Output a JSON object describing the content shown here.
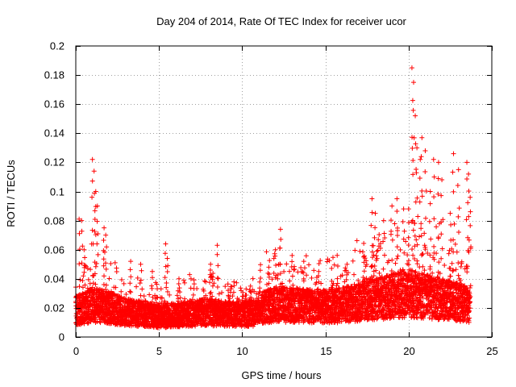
{
  "chart_data": {
    "type": "scatter",
    "title": "Day 204 of 2014, Rate Of TEC Index for receiver ucor",
    "xlabel": "GPS time / hours",
    "ylabel": "ROTI / TECUs",
    "xlim": [
      0,
      25
    ],
    "ylim": [
      0,
      0.2
    ],
    "xticks": [
      0,
      5,
      10,
      15,
      20,
      25
    ],
    "yticks": [
      0,
      0.02,
      0.04,
      0.06,
      0.08,
      0.1,
      0.12,
      0.14,
      0.16,
      0.18,
      0.2
    ],
    "grid": true,
    "marker": "+",
    "color": "#ff0000",
    "series": [
      {
        "name": "ROTI",
        "baseline_profile": [
          [
            0,
            0.018
          ],
          [
            1,
            0.022
          ],
          [
            2,
            0.02
          ],
          [
            3,
            0.017
          ],
          [
            4,
            0.016
          ],
          [
            5,
            0.014
          ],
          [
            6,
            0.015
          ],
          [
            7,
            0.016
          ],
          [
            8,
            0.017
          ],
          [
            9,
            0.016
          ],
          [
            10,
            0.016
          ],
          [
            10.8,
            0.016
          ],
          [
            11,
            0.02
          ],
          [
            12,
            0.022
          ],
          [
            13,
            0.022
          ],
          [
            14,
            0.021
          ],
          [
            15,
            0.021
          ],
          [
            16,
            0.022
          ],
          [
            17,
            0.024
          ],
          [
            18,
            0.026
          ],
          [
            19,
            0.028
          ],
          [
            20,
            0.03
          ],
          [
            21,
            0.028
          ],
          [
            22,
            0.026
          ],
          [
            23,
            0.024
          ],
          [
            23.7,
            0.022
          ]
        ],
        "peaks": [
          [
            0.2,
            0.081
          ],
          [
            0.35,
            0.08
          ],
          [
            0.5,
            0.06
          ],
          [
            1.0,
            0.122
          ],
          [
            1.1,
            0.114
          ],
          [
            1.2,
            0.1
          ],
          [
            1.3,
            0.09
          ],
          [
            1.7,
            0.075
          ],
          [
            1.8,
            0.07
          ],
          [
            3.3,
            0.052
          ],
          [
            3.9,
            0.05
          ],
          [
            4.6,
            0.045
          ],
          [
            5.4,
            0.064
          ],
          [
            5.5,
            0.054
          ],
          [
            6.2,
            0.04
          ],
          [
            8.1,
            0.05
          ],
          [
            8.5,
            0.063
          ],
          [
            10.5,
            0.035
          ],
          [
            11.6,
            0.048
          ],
          [
            12.0,
            0.06
          ],
          [
            12.3,
            0.074
          ],
          [
            13.0,
            0.056
          ],
          [
            13.7,
            0.052
          ],
          [
            14.6,
            0.045
          ],
          [
            16.3,
            0.05
          ],
          [
            17.3,
            0.055
          ],
          [
            17.8,
            0.095
          ],
          [
            18.0,
            0.085
          ],
          [
            18.5,
            0.08
          ],
          [
            19.0,
            0.09
          ],
          [
            19.3,
            0.095
          ],
          [
            19.7,
            0.088
          ],
          [
            20.0,
            0.088
          ],
          [
            20.2,
            0.185
          ],
          [
            20.3,
            0.175
          ],
          [
            20.4,
            0.152
          ],
          [
            20.5,
            0.13
          ],
          [
            20.7,
            0.122
          ],
          [
            20.8,
            0.137
          ],
          [
            21.0,
            0.128
          ],
          [
            21.3,
            0.1
          ],
          [
            21.5,
            0.122
          ],
          [
            21.8,
            0.12
          ],
          [
            22.0,
            0.108
          ],
          [
            22.5,
            0.085
          ],
          [
            22.7,
            0.126
          ],
          [
            23.0,
            0.115
          ],
          [
            23.5,
            0.12
          ],
          [
            23.6,
            0.112
          ],
          [
            23.7,
            0.096
          ]
        ]
      }
    ]
  }
}
